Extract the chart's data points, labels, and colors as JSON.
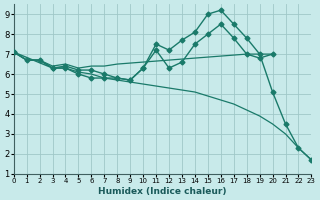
{
  "xlabel": "Humidex (Indice chaleur)",
  "background_color": "#c8eaea",
  "grid_color": "#a0c8c8",
  "line_color": "#1a7a6a",
  "x_ticks": [
    0,
    1,
    2,
    3,
    4,
    5,
    6,
    7,
    8,
    9,
    10,
    11,
    12,
    13,
    14,
    15,
    16,
    17,
    18,
    19,
    20,
    21,
    22,
    23
  ],
  "y_ticks": [
    1,
    2,
    3,
    4,
    5,
    6,
    7,
    8,
    9
  ],
  "ylim": [
    1,
    9.5
  ],
  "xlim": [
    0,
    23
  ],
  "curves": [
    {
      "x": [
        0,
        1,
        2,
        3,
        4,
        5,
        6,
        7,
        8,
        9,
        10,
        11,
        12,
        13,
        14,
        15,
        16,
        17,
        18,
        19,
        20,
        21,
        22,
        23
      ],
      "y": [
        7.1,
        6.7,
        6.7,
        6.3,
        6.3,
        6.0,
        5.8,
        5.8,
        5.8,
        5.7,
        6.3,
        7.5,
        7.2,
        7.7,
        8.1,
        9.0,
        9.2,
        8.5,
        7.8,
        7.0,
        5.1,
        3.5,
        2.3,
        1.7
      ],
      "marker": true
    },
    {
      "x": [
        0,
        1,
        2,
        3,
        4,
        5,
        6,
        7,
        8,
        9,
        10,
        11,
        12,
        13,
        14,
        15,
        16,
        17,
        18,
        19,
        20
      ],
      "y": [
        7.1,
        6.7,
        6.7,
        6.4,
        6.5,
        6.3,
        6.4,
        6.4,
        6.5,
        6.55,
        6.6,
        6.65,
        6.7,
        6.75,
        6.8,
        6.85,
        6.9,
        6.95,
        7.0,
        7.0,
        7.0
      ],
      "marker": false
    },
    {
      "x": [
        0,
        1,
        2,
        3,
        4,
        5,
        6,
        7,
        8,
        9,
        10,
        11,
        12,
        13,
        14,
        15,
        16,
        17,
        18,
        19,
        20,
        21,
        22,
        23
      ],
      "y": [
        7.1,
        6.7,
        6.7,
        6.3,
        6.3,
        6.1,
        6.0,
        5.8,
        5.7,
        5.6,
        5.5,
        5.4,
        5.3,
        5.2,
        5.1,
        4.9,
        4.7,
        4.5,
        4.2,
        3.9,
        3.5,
        3.0,
        2.3,
        1.7
      ],
      "marker": false
    },
    {
      "x": [
        0,
        3,
        4,
        5,
        6,
        7,
        8,
        9,
        10,
        11,
        12,
        13,
        14,
        15,
        16,
        17,
        18,
        19,
        20
      ],
      "y": [
        7.1,
        6.3,
        6.4,
        6.2,
        6.2,
        6.0,
        5.8,
        5.7,
        6.3,
        7.2,
        6.3,
        6.6,
        7.5,
        8.0,
        8.5,
        7.8,
        7.0,
        6.8,
        7.0
      ],
      "marker": true
    }
  ]
}
